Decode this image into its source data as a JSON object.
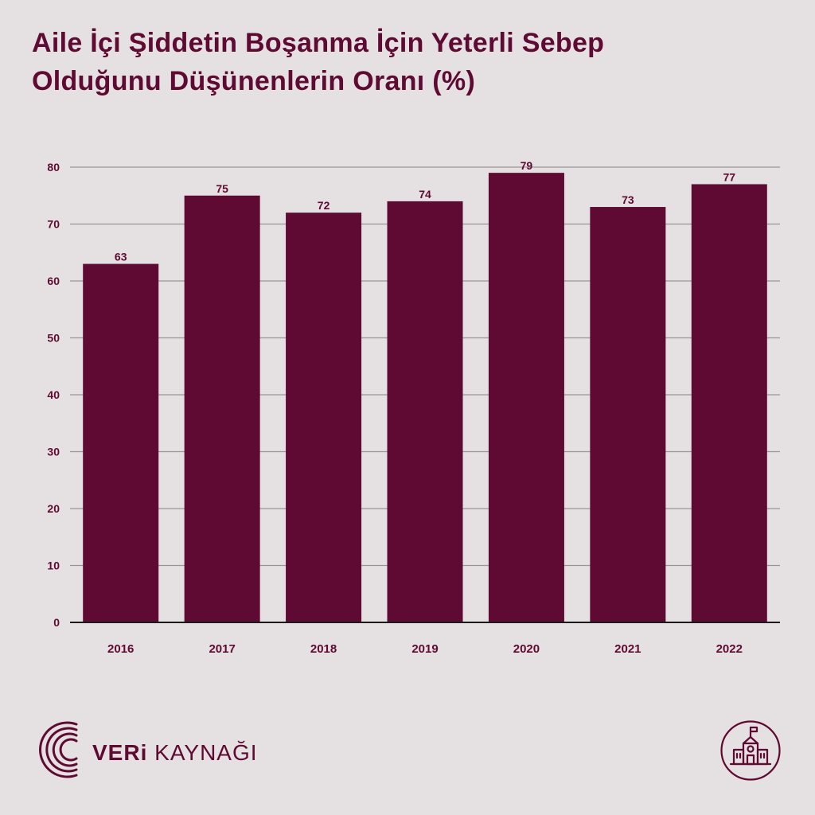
{
  "title": {
    "line1": "Aile İçi Şiddetin Boşanma İçin Yeterli Sebep",
    "line2": "Olduğunu Düşünenlerin Oranı (%)"
  },
  "chart_data": {
    "type": "bar",
    "title": "Aile İçi Şiddetin Boşanma İçin Yeterli Sebep Olduğunu Düşünenlerin Oranı (%)",
    "categories": [
      "2016",
      "2017",
      "2018",
      "2019",
      "2020",
      "2021",
      "2022"
    ],
    "values": [
      63,
      75,
      72,
      74,
      79,
      73,
      77
    ],
    "data_labels": [
      "63",
      "75",
      "72",
      "74",
      "79",
      "73",
      "77"
    ],
    "yticks": [
      0,
      10,
      20,
      30,
      40,
      50,
      60,
      70,
      80
    ],
    "ylim": [
      0,
      80
    ],
    "grid": true,
    "bar_color": "#5e0a32"
  },
  "brand": {
    "name_bold": "VERi",
    "name_light": "KAYNAĞI",
    "logo_icon": "signal-arcs-icon",
    "school_icon": "school-building-icon"
  },
  "colors": {
    "background": "#e5e0e1",
    "accent": "#5e0a32",
    "gridline": "#9a9597",
    "axis": "#1a1a1a"
  }
}
